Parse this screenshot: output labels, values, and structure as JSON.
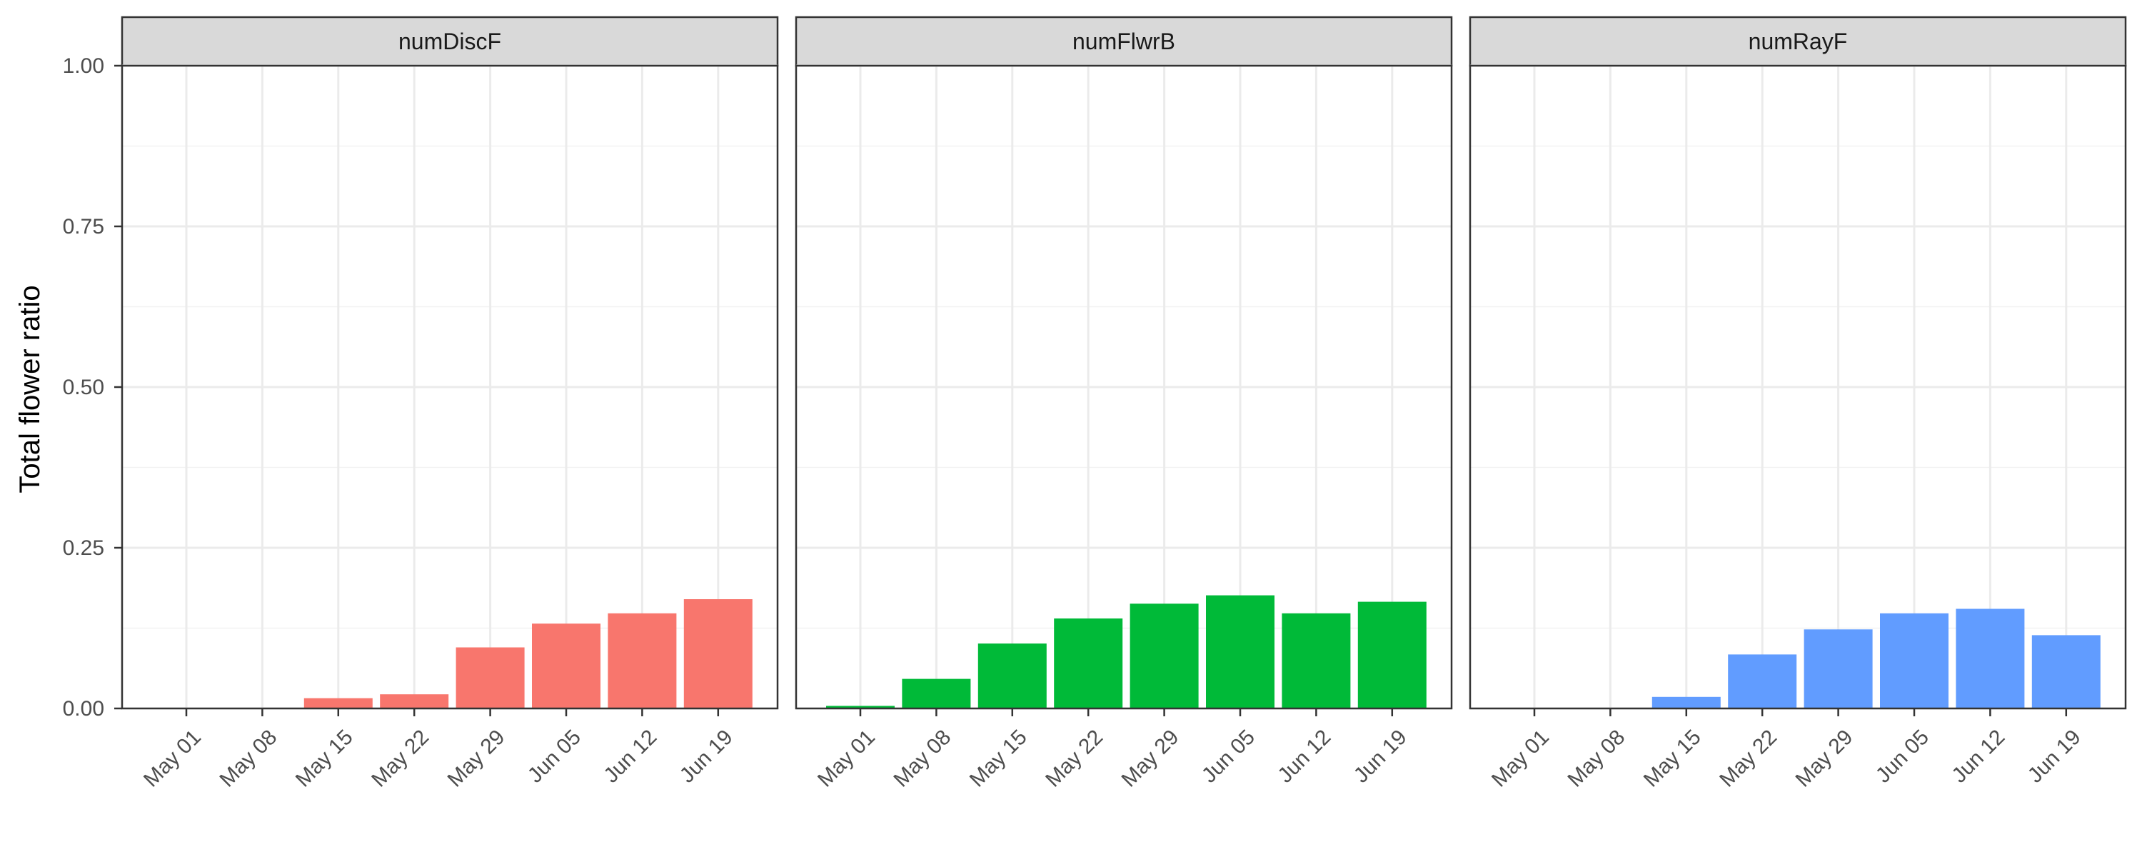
{
  "chart_data": {
    "type": "bar",
    "ylabel": "Total flower ratio",
    "xlabel": "",
    "ylim": [
      0,
      1
    ],
    "yticks": [
      "0.00",
      "0.25",
      "0.50",
      "0.75",
      "1.00"
    ],
    "ytick_values": [
      0,
      0.25,
      0.5,
      0.75,
      1.0
    ],
    "categories": [
      "May 01",
      "May 08",
      "May 15",
      "May 22",
      "May 29",
      "Jun 05",
      "Jun 12",
      "Jun 19"
    ],
    "grid": true,
    "legend": "none",
    "panels": [
      {
        "name": "numDiscF",
        "color": "#F8766D",
        "values": [
          0,
          0,
          0.016,
          0.022,
          0.095,
          0.132,
          0.148,
          0.17
        ]
      },
      {
        "name": "numFlwrB",
        "color": "#00BA38",
        "values": [
          0.004,
          0.046,
          0.101,
          0.14,
          0.163,
          0.176,
          0.148,
          0.166
        ]
      },
      {
        "name": "numRayF",
        "color": "#619CFF",
        "values": [
          0,
          0,
          0.018,
          0.084,
          0.123,
          0.148,
          0.155,
          0.114
        ]
      }
    ]
  }
}
